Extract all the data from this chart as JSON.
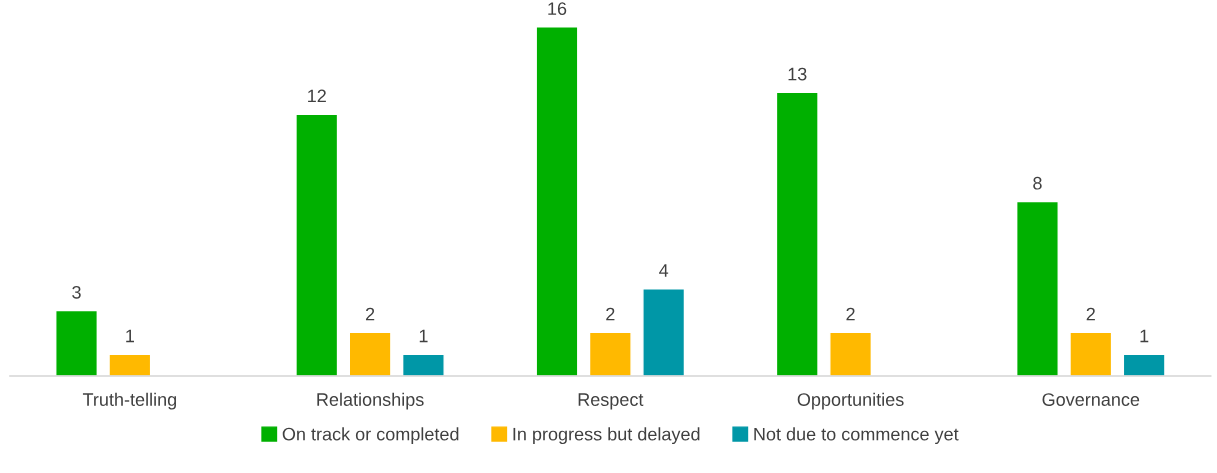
{
  "chart_data": {
    "type": "bar",
    "categories": [
      "Truth-telling",
      "Relationships",
      "Respect",
      "Opportunities",
      "Governance"
    ],
    "series": [
      {
        "name": "On track or completed",
        "color": "#00b000",
        "values": [
          3,
          12,
          16,
          13,
          8
        ]
      },
      {
        "name": "In progress but delayed",
        "color": "#ffb900",
        "values": [
          1,
          2,
          2,
          2,
          2
        ]
      },
      {
        "name": "Not due to commence yet",
        "color": "#0097a7",
        "values": [
          null,
          1,
          4,
          null,
          1
        ]
      }
    ],
    "data_labels": true,
    "legend": "bottom",
    "grid": false,
    "tick_labels": "x"
  }
}
